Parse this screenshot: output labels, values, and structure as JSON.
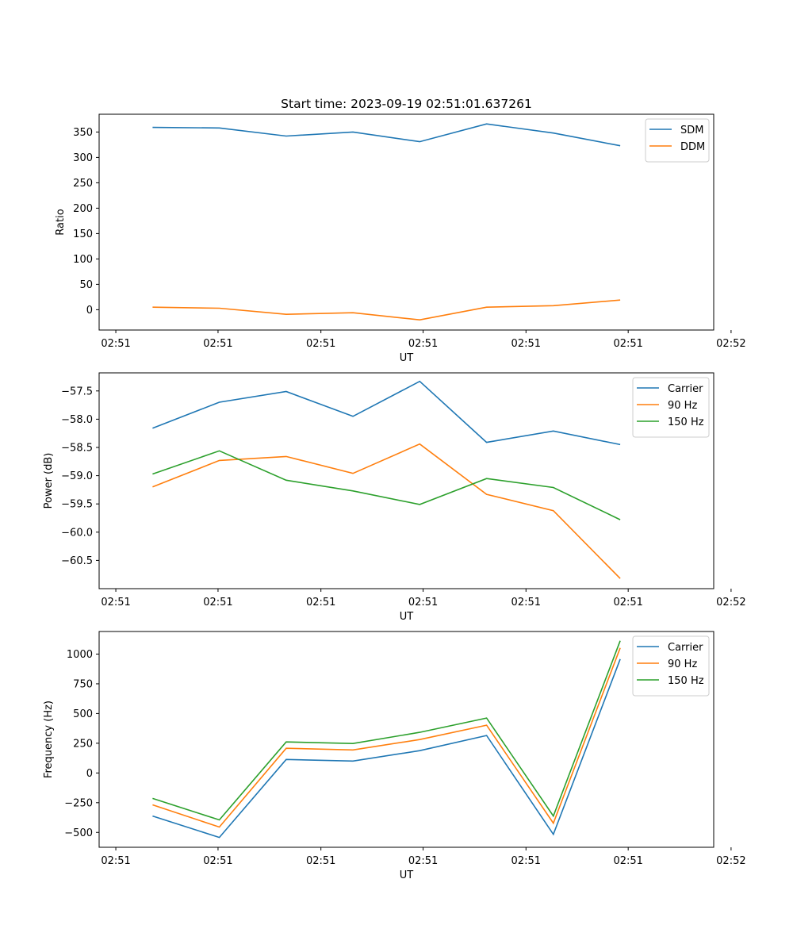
{
  "figure": {
    "title": "Start time: 2023-09-19 02:51:01.637261"
  },
  "colors": {
    "blue": "#1f77b4",
    "orange": "#ff7f0e",
    "green": "#2ca02c"
  },
  "chart_data": [
    {
      "type": "line",
      "title": "Start time: 2023-09-19 02:51:01.637261",
      "xlabel": "UT",
      "ylabel": "Ratio",
      "x": [
        1,
        2,
        3,
        4,
        5,
        6,
        7,
        8
      ],
      "xlim": [
        0.2,
        9.4
      ],
      "xticks": [
        0.45,
        1.98,
        3.52,
        5.05,
        6.59,
        8.12,
        9.66
      ],
      "xtick_labels": [
        "02:51",
        "02:51",
        "02:51",
        "02:51",
        "02:51",
        "02:51",
        "02:52"
      ],
      "ylim": [
        -40,
        385
      ],
      "yticks": [
        0,
        50,
        100,
        150,
        200,
        250,
        300,
        350
      ],
      "ytick_labels": [
        "0",
        "50",
        "100",
        "150",
        "200",
        "250",
        "300",
        "350"
      ],
      "grid": false,
      "legend": "top-right",
      "series": [
        {
          "name": "SDM",
          "color": "#1f77b4",
          "values": [
            359,
            358,
            342,
            350,
            331,
            366,
            348,
            323
          ]
        },
        {
          "name": "DDM",
          "color": "#ff7f0e",
          "values": [
            5,
            3,
            -9,
            -6,
            -20,
            5,
            8,
            19
          ]
        }
      ]
    },
    {
      "type": "line",
      "title": "",
      "xlabel": "UT",
      "ylabel": "Power (dB)",
      "x": [
        1,
        2,
        3,
        4,
        5,
        6,
        7,
        8
      ],
      "xlim": [
        0.2,
        9.4
      ],
      "xticks": [
        0.45,
        1.98,
        3.52,
        5.05,
        6.59,
        8.12,
        9.66
      ],
      "xtick_labels": [
        "02:51",
        "02:51",
        "02:51",
        "02:51",
        "02:51",
        "02:51",
        "02:52"
      ],
      "ylim": [
        -61.0,
        -57.18
      ],
      "yticks": [
        -57.5,
        -58.0,
        -58.5,
        -59.0,
        -59.5,
        -60.0,
        -60.5
      ],
      "ytick_labels": [
        "−57.5",
        "−58.0",
        "−58.5",
        "−59.0",
        "−59.5",
        "−60.0",
        "−60.5"
      ],
      "grid": false,
      "legend": "top-right",
      "series": [
        {
          "name": "Carrier",
          "color": "#1f77b4",
          "values": [
            -58.16,
            -57.7,
            -57.51,
            -57.95,
            -57.33,
            -58.41,
            -58.21,
            -58.45
          ]
        },
        {
          "name": "90 Hz",
          "color": "#ff7f0e",
          "values": [
            -59.2,
            -58.73,
            -58.66,
            -58.96,
            -58.44,
            -59.33,
            -59.62,
            -60.82
          ]
        },
        {
          "name": "150 Hz",
          "color": "#2ca02c",
          "values": [
            -58.97,
            -58.56,
            -59.08,
            -59.27,
            -59.51,
            -59.05,
            -59.21,
            -59.78
          ]
        }
      ]
    },
    {
      "type": "line",
      "title": "",
      "xlabel": "UT",
      "ylabel": "Frequency (Hz)",
      "x": [
        1,
        2,
        3,
        4,
        5,
        6,
        7,
        8
      ],
      "xlim": [
        0.2,
        9.4
      ],
      "xticks": [
        0.45,
        1.98,
        3.52,
        5.05,
        6.59,
        8.12,
        9.66
      ],
      "xtick_labels": [
        "02:51",
        "02:51",
        "02:51",
        "02:51",
        "02:51",
        "02:51",
        "02:52"
      ],
      "ylim": [
        -625,
        1190
      ],
      "yticks": [
        -500,
        -250,
        0,
        250,
        500,
        750,
        1000
      ],
      "ytick_labels": [
        "−500",
        "−250",
        "0",
        "250",
        "500",
        "750",
        "1000"
      ],
      "grid": false,
      "legend": "top-right",
      "series": [
        {
          "name": "Carrier",
          "color": "#1f77b4",
          "values": [
            -362,
            -542,
            114,
            100,
            188,
            315,
            -516,
            958
          ]
        },
        {
          "name": "90 Hz",
          "color": "#ff7f0e",
          "values": [
            -268,
            -455,
            208,
            194,
            281,
            402,
            -422,
            1052
          ]
        },
        {
          "name": "150 Hz",
          "color": "#2ca02c",
          "values": [
            -214,
            -395,
            261,
            248,
            342,
            462,
            -362,
            1112
          ]
        }
      ]
    }
  ]
}
